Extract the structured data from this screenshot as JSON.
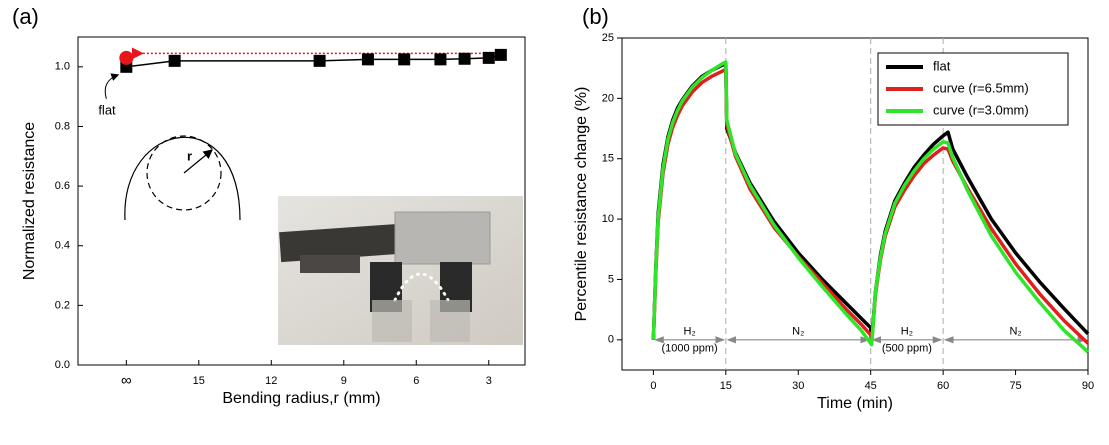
{
  "chart_data": [
    {
      "type": "line",
      "panel_label": "(a)",
      "xlabel": "Bending radius,r (mm)",
      "ylabel": "Normalized resistance",
      "xlim": [
        20,
        1.5
      ],
      "ylim": [
        0,
        1.1
      ],
      "xticks": [
        {
          "value": 18,
          "label": "∞"
        },
        15,
        12,
        9,
        6,
        3
      ],
      "yticks": [
        {
          "value": 0,
          "label": "0.0"
        },
        0.2,
        0.4,
        0.6,
        0.8,
        {
          "value": 1,
          "label": "1.0"
        }
      ],
      "series": [
        {
          "color": "#000000",
          "marker": "square",
          "x": [
            18,
            16,
            10,
            8,
            6.5,
            5,
            4,
            3,
            2.5
          ],
          "values": [
            1.0,
            1.02,
            1.02,
            1.025,
            1.025,
            1.025,
            1.027,
            1.03,
            1.04
          ]
        },
        {
          "color": "#e8151b",
          "marker": "circle",
          "x": [
            18
          ],
          "values": [
            1.03
          ]
        }
      ],
      "arrow": {
        "color": "#e8151b",
        "from": [
          2.5,
          1.045
        ],
        "to": [
          17.4,
          1.045
        ]
      },
      "annotations": [
        "flat",
        "r"
      ]
    },
    {
      "type": "line",
      "panel_label": "(b)",
      "xlabel": "Time (min)",
      "ylabel": "Percentile resistance change (%)",
      "xlim": [
        -6.5,
        90
      ],
      "ylim": [
        -2.5,
        25
      ],
      "xticks": [
        0,
        15,
        30,
        45,
        60,
        75,
        90
      ],
      "yticks": [
        0,
        5,
        10,
        15,
        20,
        25
      ],
      "vlines": [
        15,
        45,
        60
      ],
      "legend": "upper right",
      "x": [
        0,
        0.5,
        1,
        2,
        3,
        4,
        5,
        6,
        8,
        10,
        12,
        14,
        15,
        15.2,
        17,
        20,
        25,
        30,
        35,
        40,
        43,
        45,
        45.2,
        46,
        47,
        48,
        50,
        52,
        54,
        56,
        58,
        60,
        61,
        62,
        65,
        70,
        75,
        80,
        85,
        90
      ],
      "series": [
        {
          "name": "flat",
          "color": "#000000",
          "values": [
            0,
            6,
            10.5,
            14.5,
            16.8,
            18.2,
            19.2,
            19.9,
            21,
            21.8,
            22.3,
            22.7,
            22.9,
            17.5,
            15.5,
            13,
            9.8,
            7.2,
            5,
            3,
            1.8,
            1.0,
            0,
            4,
            7,
            9,
            11.5,
            13,
            14.3,
            15.3,
            16.2,
            16.9,
            17.2,
            15.8,
            13.5,
            10,
            7.2,
            4.8,
            2.6,
            0.5
          ]
        },
        {
          "name": "curve (r=6.5mm)",
          "color": "#e0201c",
          "values": [
            0,
            5.5,
            9.8,
            13.8,
            16.2,
            17.6,
            18.6,
            19.4,
            20.5,
            21.3,
            21.8,
            22.2,
            22.4,
            17.8,
            15.2,
            12.5,
            9.3,
            6.9,
            4.7,
            2.5,
            1.3,
            0.4,
            -0.2,
            3.8,
            6.6,
            8.6,
            11,
            12.4,
            13.6,
            14.6,
            15.3,
            15.9,
            15.8,
            14.8,
            12.6,
            9.2,
            6.3,
            3.8,
            1.6,
            -0.3
          ]
        },
        {
          "name": "curve (r=3.0mm)",
          "color": "#2ee52a",
          "values": [
            0,
            5.8,
            10.2,
            14.2,
            16.6,
            18,
            19,
            19.8,
            20.9,
            21.7,
            22.3,
            22.8,
            23.0,
            18.2,
            15.4,
            12.8,
            9.5,
            6.8,
            4.4,
            2.1,
            0.8,
            -0.3,
            -0.4,
            4,
            6.8,
            8.8,
            11.3,
            12.8,
            14,
            15,
            15.8,
            16.4,
            16.3,
            15.1,
            12.4,
            8.6,
            5.6,
            3.1,
            0.8,
            -1.0
          ]
        }
      ],
      "phases": [
        {
          "label": "H₂",
          "sub": "(1000 ppm)",
          "start": 0,
          "end": 15
        },
        {
          "label": "N₂",
          "start": 15,
          "end": 45
        },
        {
          "label": "H₂",
          "sub": "(500 ppm)",
          "start": 45,
          "end": 60
        },
        {
          "label": "N₂",
          "start": 60,
          "end": 90
        }
      ]
    }
  ]
}
